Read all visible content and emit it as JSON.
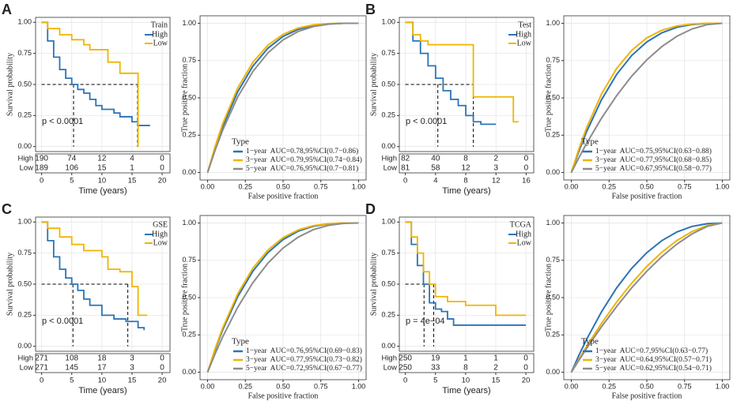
{
  "chart_data": [
    {
      "type": "km",
      "panel": "A",
      "legend_title": "Train",
      "xlabel": "Time (years)",
      "ylabel": "Survival probability",
      "annotation": "p < 0.0001",
      "xlim": [
        -1,
        21.3
      ],
      "ylim": [
        -0.04,
        1.04
      ],
      "xticks": [
        0,
        5,
        10,
        15,
        20
      ],
      "yticks": [
        {
          "value": 0,
          "label": "0.00"
        },
        {
          "value": 0.25,
          "label": "0.25"
        },
        {
          "value": 0.5,
          "label": "0.50"
        },
        {
          "value": 0.75,
          "label": "0.75"
        },
        {
          "value": 1,
          "label": "1.00"
        }
      ],
      "grid": true,
      "series": [
        {
          "name": "High",
          "color": "#2a73b8",
          "x": [
            0,
            1,
            2,
            3,
            4,
            5,
            6,
            7,
            8,
            9,
            10,
            12,
            13,
            15,
            16,
            18
          ],
          "values": [
            1,
            0.85,
            0.72,
            0.62,
            0.55,
            0.5,
            0.46,
            0.43,
            0.38,
            0.33,
            0.3,
            0.27,
            0.24,
            0.2,
            0.17,
            0.17
          ]
        },
        {
          "name": "Low",
          "color": "#f0b400",
          "x": [
            0,
            1,
            3,
            5,
            7,
            8,
            10,
            11,
            13,
            15.5,
            16
          ],
          "values": [
            1,
            0.95,
            0.9,
            0.86,
            0.82,
            0.78,
            0.78,
            0.68,
            0.59,
            0.59,
            0
          ]
        }
      ],
      "median": {
        "y": 0.5,
        "x": [
          5.3,
          15.9
        ]
      },
      "risk_table": {
        "rows": [
          "High",
          "Low"
        ],
        "values": [
          [
            190,
            74,
            12,
            4,
            0
          ],
          [
            189,
            106,
            15,
            1,
            0
          ]
        ]
      }
    },
    {
      "type": "roc",
      "xlabel": "False positive fraction",
      "ylabel": "True positive fraction",
      "legend_title": "Type",
      "legend": "bottom-right",
      "xlim": [
        -0.05,
        1.05
      ],
      "ylim": [
        -0.05,
        1.05
      ],
      "xticks": [
        {
          "value": 0,
          "label": "0.00"
        },
        {
          "value": 0.25,
          "label": "0.25"
        },
        {
          "value": 0.5,
          "label": "0.50"
        },
        {
          "value": 0.75,
          "label": "0.75"
        },
        {
          "value": 1,
          "label": "1.00"
        }
      ],
      "yticks": [
        {
          "value": 0,
          "label": "0.00"
        },
        {
          "value": 0.25,
          "label": "0.25"
        },
        {
          "value": 0.5,
          "label": "0.50"
        },
        {
          "value": 0.75,
          "label": "0.75"
        },
        {
          "value": 1,
          "label": "1.00"
        }
      ],
      "grid": true,
      "x": [
        0,
        0.05,
        0.1,
        0.2,
        0.3,
        0.4,
        0.5,
        0.6,
        0.7,
        0.8,
        0.9,
        1
      ],
      "series": [
        {
          "name": "1−year  AUC=0.78,95%CI(0.7−0.86)",
          "color": "#2a73b8",
          "values": [
            0,
            0.164,
            0.308,
            0.542,
            0.713,
            0.833,
            0.912,
            0.959,
            0.985,
            0.996,
            1,
            1
          ]
        },
        {
          "name": "3−year  AUC=0.79,95%CI(0.74−0.84)",
          "color": "#f0b400",
          "values": [
            0,
            0.175,
            0.327,
            0.568,
            0.739,
            0.854,
            0.926,
            0.968,
            0.989,
            0.998,
            1,
            1
          ]
        },
        {
          "name": "5−year  AUC=0.76,95%CI(0.7−0.81)",
          "color": "#8c8c8c",
          "values": [
            0,
            0.15,
            0.284,
            0.507,
            0.677,
            0.802,
            0.889,
            0.945,
            0.978,
            0.994,
            1,
            1
          ]
        }
      ]
    },
    {
      "type": "km",
      "panel": "B",
      "legend_title": "Test",
      "xlabel": "Time (years)",
      "ylabel": "Survival probability",
      "annotation": "p < 0.0001",
      "xlim": [
        -0.8,
        17
      ],
      "ylim": [
        -0.04,
        1.04
      ],
      "xticks": [
        0,
        4,
        8,
        12,
        16
      ],
      "yticks": [
        {
          "value": 0,
          "label": "0.00"
        },
        {
          "value": 0.25,
          "label": "0.25"
        },
        {
          "value": 0.5,
          "label": "0.50"
        },
        {
          "value": 0.75,
          "label": "0.75"
        },
        {
          "value": 1,
          "label": "1.00"
        }
      ],
      "grid": true,
      "series": [
        {
          "name": "High",
          "color": "#2a73b8",
          "x": [
            0,
            1,
            2,
            3,
            4,
            5,
            6,
            7,
            8,
            9,
            10,
            12
          ],
          "values": [
            1,
            0.85,
            0.75,
            0.65,
            0.55,
            0.45,
            0.38,
            0.33,
            0.25,
            0.2,
            0.18,
            0.18
          ]
        },
        {
          "name": "Low",
          "color": "#f0b400",
          "x": [
            0,
            1,
            2,
            3,
            8,
            9,
            14,
            14.3,
            15
          ],
          "values": [
            1,
            0.9,
            0.85,
            0.82,
            0.82,
            0.4,
            0.4,
            0.2,
            0.2
          ]
        }
      ],
      "median": {
        "y": 0.5,
        "x": [
          4.3,
          9
        ]
      },
      "risk_table": {
        "rows": [
          "High",
          "Low"
        ],
        "values": [
          [
            82,
            40,
            8,
            2,
            0
          ],
          [
            81,
            58,
            12,
            3,
            0
          ]
        ]
      }
    },
    {
      "type": "roc",
      "xlabel": "False positive fraction",
      "ylabel": "True positive fraction",
      "legend_title": "Type",
      "legend": "bottom-left",
      "xlim": [
        -0.05,
        1.05
      ],
      "ylim": [
        -0.05,
        1.05
      ],
      "xticks": [
        {
          "value": 0,
          "label": "0.00"
        },
        {
          "value": 0.25,
          "label": "0.25"
        },
        {
          "value": 0.5,
          "label": "0.50"
        },
        {
          "value": 0.75,
          "label": "0.75"
        },
        {
          "value": 1,
          "label": "1.00"
        }
      ],
      "yticks": [
        {
          "value": 0,
          "label": "0.00"
        },
        {
          "value": 0.25,
          "label": "0.25"
        },
        {
          "value": 0.5,
          "label": "0.50"
        },
        {
          "value": 0.75,
          "label": "0.75"
        },
        {
          "value": 1,
          "label": "1.00"
        }
      ],
      "grid": true,
      "x": [
        0,
        0.05,
        0.1,
        0.2,
        0.3,
        0.4,
        0.5,
        0.6,
        0.7,
        0.8,
        0.9,
        1
      ],
      "series": [
        {
          "name": "1−year  AUC=0.75,95%CI(0.63−0.88)",
          "color": "#2a73b8",
          "values": [
            0,
            0.143,
            0.271,
            0.488,
            0.657,
            0.784,
            0.875,
            0.936,
            0.973,
            0.992,
            0.999,
            1
          ]
        },
        {
          "name": "3−year  AUC=0.77,95%CI(0.68−0.85)",
          "color": "#f0b400",
          "values": [
            0,
            0.158,
            0.297,
            0.526,
            0.697,
            0.819,
            0.902,
            0.953,
            0.982,
            0.995,
            1,
            1
          ]
        },
        {
          "name": "5−year  AUC=0.67,95%CI(0.58−0.77)",
          "color": "#8c8c8c",
          "values": [
            0,
            0.099,
            0.193,
            0.364,
            0.515,
            0.646,
            0.755,
            0.844,
            0.913,
            0.962,
            0.991,
            1
          ]
        }
      ]
    },
    {
      "type": "km",
      "panel": "C",
      "legend_title": "GSE",
      "xlabel": "Time (years)",
      "ylabel": "Survival probability",
      "annotation": "p < 0.0001",
      "xlim": [
        -1,
        21.3
      ],
      "ylim": [
        -0.04,
        1.04
      ],
      "xticks": [
        0,
        5,
        10,
        15,
        20
      ],
      "yticks": [
        {
          "value": 0,
          "label": "0.00"
        },
        {
          "value": 0.25,
          "label": "0.25"
        },
        {
          "value": 0.5,
          "label": "0.50"
        },
        {
          "value": 0.75,
          "label": "0.75"
        },
        {
          "value": 1,
          "label": "1.00"
        }
      ],
      "grid": true,
      "series": [
        {
          "name": "High",
          "color": "#2a73b8",
          "x": [
            0,
            1,
            2,
            3,
            4,
            5,
            6,
            7,
            8,
            10,
            12,
            14,
            16,
            17
          ],
          "values": [
            1,
            0.85,
            0.72,
            0.62,
            0.55,
            0.5,
            0.45,
            0.38,
            0.33,
            0.25,
            0.22,
            0.2,
            0.15,
            0.13
          ]
        },
        {
          "name": "Low",
          "color": "#f0b400",
          "x": [
            0,
            1,
            3,
            5,
            7,
            10,
            11,
            13,
            15,
            16,
            17.5
          ],
          "values": [
            1,
            0.95,
            0.88,
            0.82,
            0.77,
            0.72,
            0.62,
            0.6,
            0.48,
            0.25,
            0.25
          ]
        }
      ],
      "median": {
        "y": 0.5,
        "x": [
          5.2,
          14.3
        ]
      },
      "risk_table": {
        "rows": [
          "High",
          "Low"
        ],
        "values": [
          [
            271,
            108,
            18,
            3,
            0
          ],
          [
            271,
            145,
            17,
            3,
            0
          ]
        ]
      }
    },
    {
      "type": "roc",
      "xlabel": "False positive fraction",
      "ylabel": "True positive fraction",
      "legend_title": "Type",
      "legend": "bottom-right",
      "xlim": [
        -0.05,
        1.05
      ],
      "ylim": [
        -0.05,
        1.05
      ],
      "xticks": [
        {
          "value": 0,
          "label": "0.00"
        },
        {
          "value": 0.25,
          "label": "0.25"
        },
        {
          "value": 0.5,
          "label": "0.50"
        },
        {
          "value": 0.75,
          "label": "0.75"
        },
        {
          "value": 1,
          "label": "1.00"
        }
      ],
      "yticks": [
        {
          "value": 0,
          "label": "0.00"
        },
        {
          "value": 0.25,
          "label": "0.25"
        },
        {
          "value": 0.5,
          "label": "0.50"
        },
        {
          "value": 0.75,
          "label": "0.75"
        },
        {
          "value": 1,
          "label": "1.00"
        }
      ],
      "grid": true,
      "x": [
        0,
        0.05,
        0.1,
        0.2,
        0.3,
        0.4,
        0.5,
        0.6,
        0.7,
        0.8,
        0.9,
        1
      ],
      "series": [
        {
          "name": "1−year  AUC=0.76,95%CI(0.69−0.83)",
          "color": "#2a73b8",
          "values": [
            0,
            0.15,
            0.284,
            0.507,
            0.677,
            0.802,
            0.889,
            0.945,
            0.978,
            0.994,
            1,
            1
          ]
        },
        {
          "name": "3−year  AUC=0.77,95%CI(0.73−0.82)",
          "color": "#f0b400",
          "values": [
            0,
            0.158,
            0.297,
            0.526,
            0.697,
            0.819,
            0.902,
            0.953,
            0.982,
            0.995,
            1,
            1
          ]
        },
        {
          "name": "5−year  AUC=0.72,95%CI(0.67−0.77)",
          "color": "#8c8c8c",
          "values": [
            0,
            0.124,
            0.237,
            0.436,
            0.6,
            0.731,
            0.832,
            0.905,
            0.955,
            0.984,
            0.997,
            1
          ]
        }
      ]
    },
    {
      "type": "km",
      "panel": "D",
      "legend_title": "TCGA",
      "xlabel": "Time (years)",
      "ylabel": "Survival probability",
      "annotation": "p = 4e−04",
      "xlim": [
        -1,
        21.3
      ],
      "ylim": [
        -0.04,
        1.04
      ],
      "xticks": [
        0,
        5,
        10,
        15,
        20
      ],
      "yticks": [
        {
          "value": 0,
          "label": "0.00"
        },
        {
          "value": 0.25,
          "label": "0.25"
        },
        {
          "value": 0.5,
          "label": "0.50"
        },
        {
          "value": 0.75,
          "label": "0.75"
        },
        {
          "value": 1,
          "label": "1.00"
        }
      ],
      "grid": true,
      "series": [
        {
          "name": "High",
          "color": "#2a73b8",
          "x": [
            0,
            1,
            2,
            3,
            4,
            5,
            6,
            7,
            8,
            20
          ],
          "values": [
            1,
            0.82,
            0.65,
            0.5,
            0.35,
            0.3,
            0.28,
            0.22,
            0.17,
            0.17
          ]
        },
        {
          "name": "Low",
          "color": "#f0b400",
          "x": [
            0,
            1,
            2,
            3,
            4,
            5,
            7,
            10,
            15,
            20
          ],
          "values": [
            1,
            0.88,
            0.75,
            0.6,
            0.5,
            0.4,
            0.36,
            0.33,
            0.25,
            0.25
          ]
        }
      ],
      "median": {
        "y": 0.5,
        "x": [
          3.1,
          4.7
        ]
      },
      "risk_table": {
        "rows": [
          "High",
          "Low"
        ],
        "values": [
          [
            250,
            19,
            1,
            1,
            0
          ],
          [
            250,
            33,
            8,
            2,
            0
          ]
        ]
      }
    },
    {
      "type": "roc",
      "xlabel": "False positive fraction",
      "ylabel": "True positive fraction",
      "legend_title": "Type",
      "legend": "bottom-left",
      "xlim": [
        -0.05,
        1.05
      ],
      "ylim": [
        -0.05,
        1.05
      ],
      "xticks": [
        {
          "value": 0,
          "label": "0.00"
        },
        {
          "value": 0.25,
          "label": "0.25"
        },
        {
          "value": 0.5,
          "label": "0.50"
        },
        {
          "value": 0.75,
          "label": "0.75"
        },
        {
          "value": 1,
          "label": "1.00"
        }
      ],
      "yticks": [
        {
          "value": 0,
          "label": "0.00"
        },
        {
          "value": 0.25,
          "label": "0.25"
        },
        {
          "value": 0.5,
          "label": "0.50"
        },
        {
          "value": 0.75,
          "label": "0.75"
        },
        {
          "value": 1,
          "label": "1.00"
        }
      ],
      "grid": true,
      "x": [
        0,
        0.05,
        0.1,
        0.2,
        0.3,
        0.4,
        0.5,
        0.6,
        0.7,
        0.8,
        0.9,
        1
      ],
      "series": [
        {
          "name": "1−year  AUC=0.7,95%CI(0.63−0.77)",
          "color": "#2a73b8",
          "values": [
            0,
            0.113,
            0.218,
            0.405,
            0.565,
            0.696,
            0.801,
            0.882,
            0.94,
            0.977,
            0.995,
            1
          ]
        },
        {
          "name": "3−year  AUC=0.64,95%CI(0.57−0.71)",
          "color": "#f0b400",
          "values": [
            0,
            0.087,
            0.171,
            0.328,
            0.47,
            0.597,
            0.709,
            0.804,
            0.883,
            0.943,
            0.983,
            1
          ]
        },
        {
          "name": "5−year  AUC=0.62,95%CI(0.54−0.71)",
          "color": "#8c8c8c",
          "values": [
            0,
            0.08,
            0.158,
            0.305,
            0.44,
            0.566,
            0.677,
            0.775,
            0.859,
            0.927,
            0.977,
            1
          ]
        }
      ]
    }
  ]
}
